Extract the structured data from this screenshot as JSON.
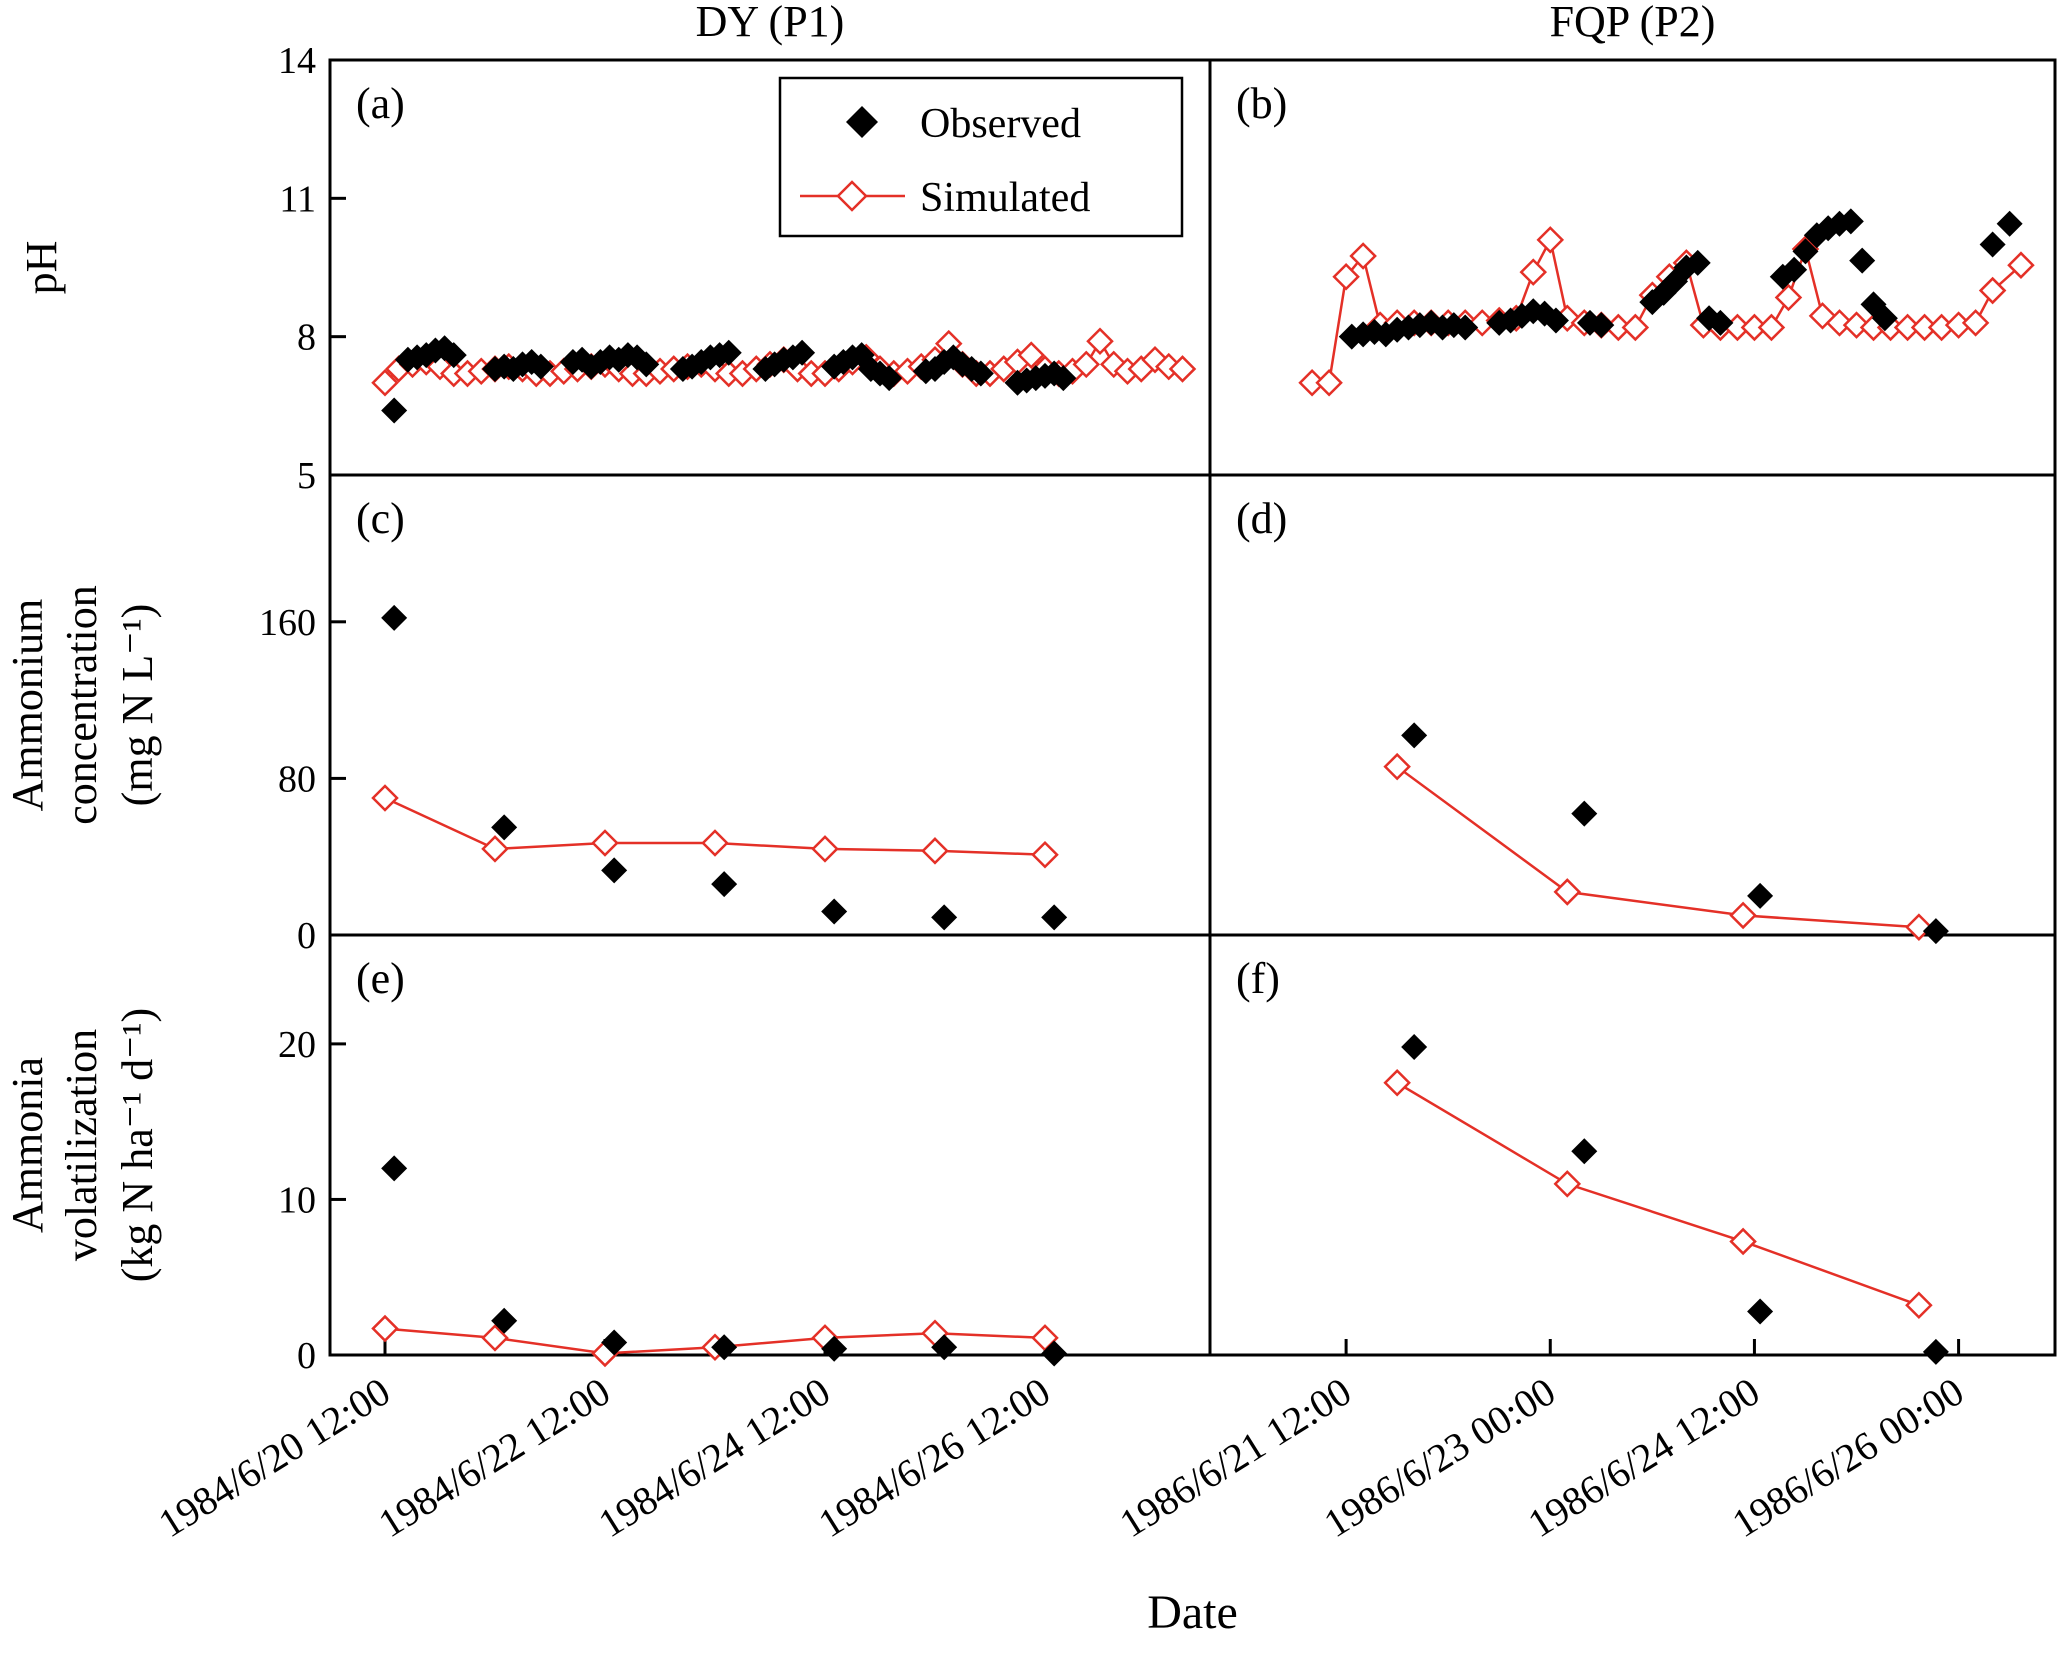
{
  "figure": {
    "xlabel": "Date",
    "colors": {
      "observed": "#000000",
      "simulated": "#e43027",
      "frame": "#000000",
      "background": "#ffffff"
    },
    "legend": {
      "position": "top-center-of-panel-a",
      "items": [
        {
          "key": "observed",
          "label": "Observed",
          "marker": "filled-diamond"
        },
        {
          "key": "simulated",
          "label": "Simulated",
          "marker": "open-diamond-with-line"
        }
      ]
    }
  },
  "chart_data": {
    "type": "scatter",
    "grid": "3 rows x 2 columns, shared axes, no gridlines",
    "columns": [
      {
        "title": "DY (P1)",
        "xmin": 0,
        "xmax": 192,
        "xticks": [
          {
            "v": 12,
            "label": "1984/6/20 12:00"
          },
          {
            "v": 60,
            "label": "1984/6/22 12:00"
          },
          {
            "v": 108,
            "label": "1984/6/24 12:00"
          },
          {
            "v": 156,
            "label": "1984/6/26 12:00"
          }
        ]
      },
      {
        "title": "FQP (P2)",
        "xmin": 12,
        "xmax": 161,
        "xticks": [
          {
            "v": 36,
            "label": "1986/6/21 12:00"
          },
          {
            "v": 72,
            "label": "1986/6/23 00:00"
          },
          {
            "v": 108,
            "label": "1986/6/24 12:00"
          },
          {
            "v": 144,
            "label": "1986/6/26 00:00"
          }
        ]
      }
    ],
    "rows": [
      {
        "label_lines": [
          "pH"
        ],
        "unit": "",
        "ymin": 5,
        "ymax": 14,
        "yticks": [
          5,
          8,
          11,
          14
        ]
      },
      {
        "label_lines": [
          "Ammonium",
          "concentration"
        ],
        "unit": "(mg N L⁻¹)",
        "ymin": 0,
        "ymax": 235,
        "yticks": [
          0,
          80,
          160
        ]
      },
      {
        "label_lines": [
          "Ammonia",
          "volatilization"
        ],
        "unit": "(kg N ha⁻¹ d⁻¹)",
        "ymin": 0,
        "ymax": 27,
        "yticks": [
          0,
          10,
          20
        ]
      }
    ],
    "panels": [
      {
        "letter": "(a)",
        "col": 0,
        "row": 0,
        "observed": [
          [
            14,
            6.4
          ],
          [
            17,
            7.5
          ],
          [
            19,
            7.55
          ],
          [
            21,
            7.6
          ],
          [
            23,
            7.7
          ],
          [
            25,
            7.75
          ],
          [
            27,
            7.6
          ],
          [
            36,
            7.3
          ],
          [
            38,
            7.35
          ],
          [
            40,
            7.3
          ],
          [
            42,
            7.4
          ],
          [
            44,
            7.45
          ],
          [
            46,
            7.35
          ],
          [
            53,
            7.45
          ],
          [
            55,
            7.5
          ],
          [
            57,
            7.35
          ],
          [
            59,
            7.45
          ],
          [
            61,
            7.55
          ],
          [
            63,
            7.5
          ],
          [
            65,
            7.6
          ],
          [
            67,
            7.55
          ],
          [
            69,
            7.4
          ],
          [
            77,
            7.3
          ],
          [
            79,
            7.35
          ],
          [
            81,
            7.45
          ],
          [
            83,
            7.55
          ],
          [
            85,
            7.6
          ],
          [
            87,
            7.65
          ],
          [
            95,
            7.3
          ],
          [
            97,
            7.4
          ],
          [
            99,
            7.5
          ],
          [
            101,
            7.55
          ],
          [
            103,
            7.65
          ],
          [
            110,
            7.35
          ],
          [
            112,
            7.45
          ],
          [
            114,
            7.55
          ],
          [
            116,
            7.6
          ],
          [
            118,
            7.3
          ],
          [
            120,
            7.2
          ],
          [
            122,
            7.1
          ],
          [
            130,
            7.25
          ],
          [
            132,
            7.3
          ],
          [
            134,
            7.45
          ],
          [
            136,
            7.55
          ],
          [
            138,
            7.4
          ],
          [
            140,
            7.3
          ],
          [
            142,
            7.2
          ],
          [
            150,
            7.0
          ],
          [
            152,
            7.05
          ],
          [
            154,
            7.1
          ],
          [
            156,
            7.15
          ],
          [
            158,
            7.2
          ],
          [
            160,
            7.1
          ]
        ],
        "simulated": [
          [
            12,
            7.0
          ],
          [
            15,
            7.3
          ],
          [
            18,
            7.4
          ],
          [
            21,
            7.45
          ],
          [
            24,
            7.35
          ],
          [
            27,
            7.2
          ],
          [
            30,
            7.2
          ],
          [
            33,
            7.25
          ],
          [
            36,
            7.3
          ],
          [
            39,
            7.35
          ],
          [
            42,
            7.3
          ],
          [
            45,
            7.2
          ],
          [
            48,
            7.2
          ],
          [
            51,
            7.25
          ],
          [
            54,
            7.3
          ],
          [
            57,
            7.35
          ],
          [
            60,
            7.4
          ],
          [
            63,
            7.3
          ],
          [
            66,
            7.2
          ],
          [
            69,
            7.2
          ],
          [
            72,
            7.25
          ],
          [
            75,
            7.3
          ],
          [
            78,
            7.35
          ],
          [
            81,
            7.4
          ],
          [
            84,
            7.3
          ],
          [
            87,
            7.2
          ],
          [
            90,
            7.2
          ],
          [
            93,
            7.3
          ],
          [
            96,
            7.4
          ],
          [
            99,
            7.5
          ],
          [
            102,
            7.3
          ],
          [
            105,
            7.2
          ],
          [
            108,
            7.2
          ],
          [
            111,
            7.3
          ],
          [
            114,
            7.45
          ],
          [
            117,
            7.55
          ],
          [
            120,
            7.3
          ],
          [
            123,
            7.2
          ],
          [
            126,
            7.25
          ],
          [
            129,
            7.35
          ],
          [
            132,
            7.5
          ],
          [
            135,
            7.85
          ],
          [
            138,
            7.4
          ],
          [
            141,
            7.2
          ],
          [
            144,
            7.2
          ],
          [
            147,
            7.3
          ],
          [
            150,
            7.45
          ],
          [
            153,
            7.6
          ],
          [
            156,
            7.3
          ],
          [
            159,
            7.2
          ],
          [
            162,
            7.25
          ],
          [
            165,
            7.4
          ],
          [
            168,
            7.9
          ],
          [
            171,
            7.4
          ],
          [
            174,
            7.25
          ],
          [
            177,
            7.3
          ],
          [
            180,
            7.5
          ],
          [
            183,
            7.35
          ],
          [
            186,
            7.3
          ]
        ]
      },
      {
        "letter": "(b)",
        "col": 1,
        "row": 0,
        "observed": [
          [
            37,
            8.0
          ],
          [
            39,
            8.05
          ],
          [
            41,
            8.1
          ],
          [
            43,
            8.05
          ],
          [
            45,
            8.15
          ],
          [
            47,
            8.2
          ],
          [
            49,
            8.25
          ],
          [
            51,
            8.3
          ],
          [
            53,
            8.2
          ],
          [
            55,
            8.25
          ],
          [
            57,
            8.2
          ],
          [
            63,
            8.3
          ],
          [
            65,
            8.35
          ],
          [
            67,
            8.45
          ],
          [
            69,
            8.55
          ],
          [
            71,
            8.5
          ],
          [
            73,
            8.35
          ],
          [
            79,
            8.3
          ],
          [
            81,
            8.25
          ],
          [
            90,
            8.75
          ],
          [
            92,
            8.95
          ],
          [
            94,
            9.2
          ],
          [
            96,
            9.5
          ],
          [
            98,
            9.6
          ],
          [
            100,
            8.4
          ],
          [
            102,
            8.3
          ],
          [
            113,
            9.3
          ],
          [
            115,
            9.45
          ],
          [
            117,
            9.85
          ],
          [
            119,
            10.2
          ],
          [
            121,
            10.35
          ],
          [
            123,
            10.45
          ],
          [
            125,
            10.5
          ],
          [
            127,
            9.65
          ],
          [
            129,
            8.7
          ],
          [
            131,
            8.4
          ],
          [
            150,
            10.0
          ],
          [
            153,
            10.45
          ]
        ],
        "simulated": [
          [
            30,
            7.0
          ],
          [
            33,
            7.0
          ],
          [
            36,
            9.3
          ],
          [
            39,
            9.75
          ],
          [
            42,
            8.25
          ],
          [
            45,
            8.3
          ],
          [
            48,
            8.3
          ],
          [
            51,
            8.3
          ],
          [
            54,
            8.3
          ],
          [
            57,
            8.3
          ],
          [
            60,
            8.3
          ],
          [
            63,
            8.35
          ],
          [
            66,
            8.4
          ],
          [
            69,
            9.4
          ],
          [
            72,
            10.1
          ],
          [
            75,
            8.4
          ],
          [
            78,
            8.3
          ],
          [
            81,
            8.25
          ],
          [
            84,
            8.2
          ],
          [
            87,
            8.2
          ],
          [
            90,
            8.9
          ],
          [
            93,
            9.3
          ],
          [
            96,
            9.6
          ],
          [
            99,
            8.25
          ],
          [
            102,
            8.2
          ],
          [
            105,
            8.2
          ],
          [
            108,
            8.2
          ],
          [
            111,
            8.2
          ],
          [
            114,
            8.85
          ],
          [
            117,
            9.9
          ],
          [
            120,
            8.45
          ],
          [
            123,
            8.3
          ],
          [
            126,
            8.25
          ],
          [
            129,
            8.2
          ],
          [
            132,
            8.2
          ],
          [
            135,
            8.2
          ],
          [
            138,
            8.2
          ],
          [
            141,
            8.2
          ],
          [
            144,
            8.25
          ],
          [
            147,
            8.3
          ],
          [
            150,
            9.0
          ],
          [
            155,
            9.55
          ]
        ]
      },
      {
        "letter": "(c)",
        "col": 0,
        "row": 1,
        "observed": [
          [
            14,
            162
          ],
          [
            38,
            55
          ],
          [
            62,
            33
          ],
          [
            86,
            26
          ],
          [
            110,
            12
          ],
          [
            134,
            9
          ],
          [
            158,
            9
          ]
        ],
        "simulated": [
          [
            12,
            70
          ],
          [
            36,
            44
          ],
          [
            60,
            47
          ],
          [
            84,
            47
          ],
          [
            108,
            44
          ],
          [
            132,
            43
          ],
          [
            156,
            41
          ]
        ]
      },
      {
        "letter": "(d)",
        "col": 1,
        "row": 1,
        "observed": [
          [
            48,
            102
          ],
          [
            78,
            62
          ],
          [
            109,
            20
          ],
          [
            140,
            2
          ]
        ],
        "simulated": [
          [
            45,
            86
          ],
          [
            75,
            22
          ],
          [
            106,
            10
          ],
          [
            137,
            4
          ]
        ]
      },
      {
        "letter": "(e)",
        "col": 0,
        "row": 2,
        "observed": [
          [
            14,
            12
          ],
          [
            38,
            2.2
          ],
          [
            62,
            0.8
          ],
          [
            86,
            0.5
          ],
          [
            110,
            0.4
          ],
          [
            134,
            0.5
          ],
          [
            158,
            0.1
          ]
        ],
        "simulated": [
          [
            12,
            1.7
          ],
          [
            36,
            1.1
          ],
          [
            60,
            0.1
          ],
          [
            84,
            0.5
          ],
          [
            108,
            1.1
          ],
          [
            132,
            1.4
          ],
          [
            156,
            1.1
          ]
        ]
      },
      {
        "letter": "(f)",
        "col": 1,
        "row": 2,
        "observed": [
          [
            48,
            19.8
          ],
          [
            78,
            13.1
          ],
          [
            109,
            2.8
          ],
          [
            140,
            0.2
          ]
        ],
        "simulated": [
          [
            45,
            17.5
          ],
          [
            75,
            11
          ],
          [
            106,
            7.3
          ],
          [
            137,
            3.2
          ]
        ]
      }
    ]
  }
}
